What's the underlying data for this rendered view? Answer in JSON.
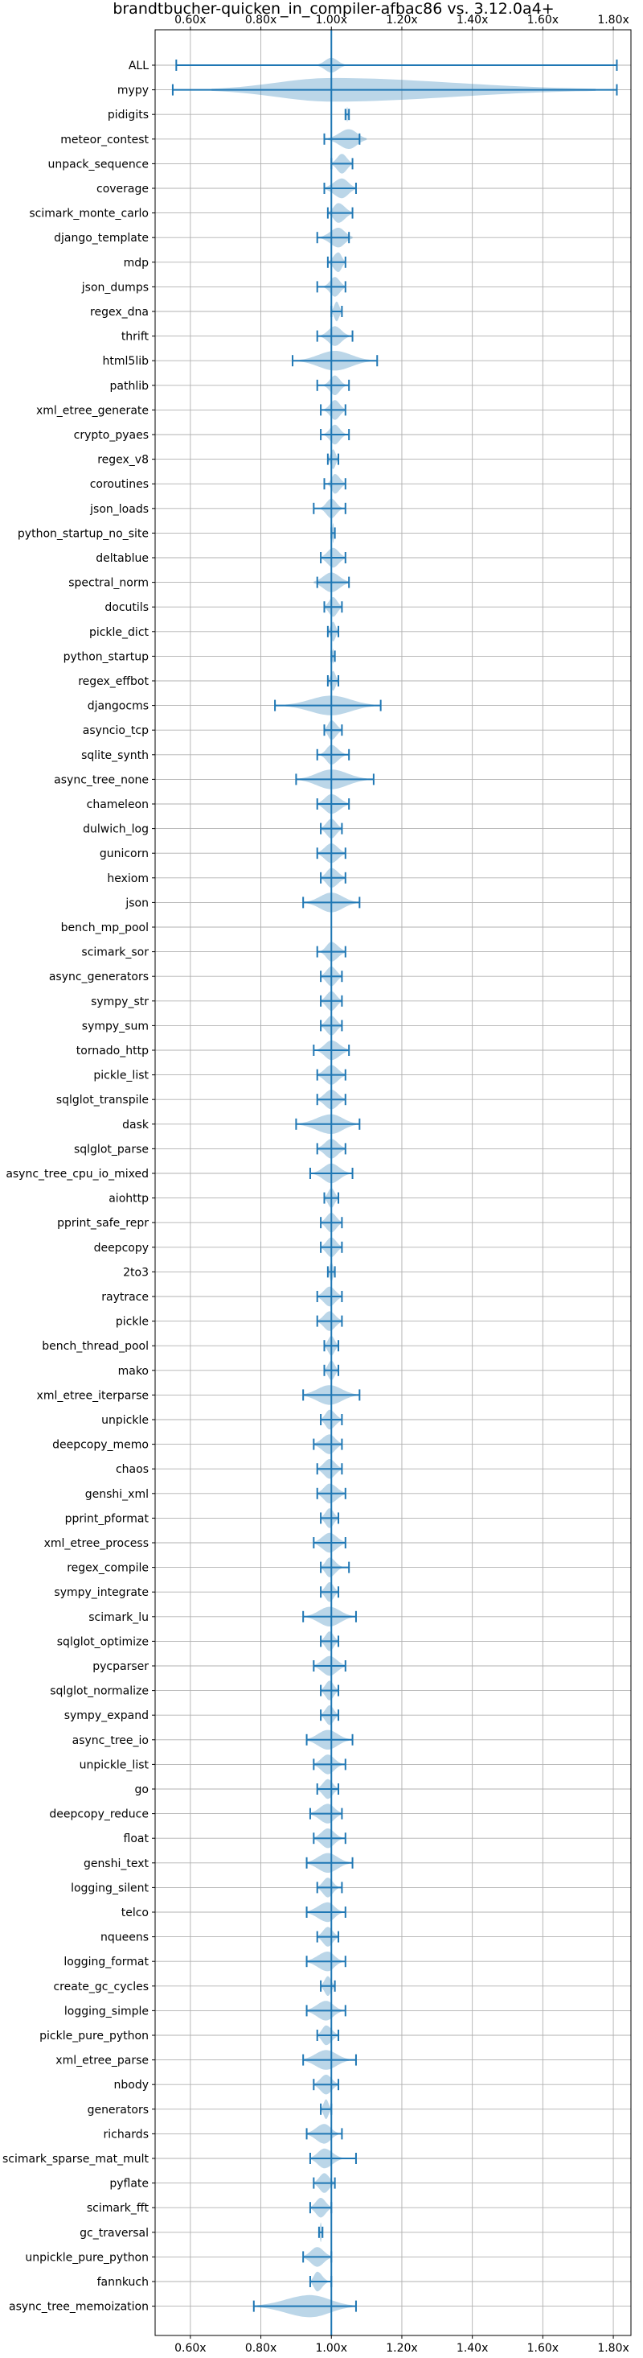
{
  "chart_data": {
    "type": "violin",
    "title": "brandtbucher-quicken_in_compiler-afbac86 vs. 3.12.0a4+",
    "xlim": [
      0.5,
      1.85
    ],
    "x_ticks": [
      0.6,
      0.8,
      1.0,
      1.2,
      1.4,
      1.6,
      1.8
    ],
    "x_tick_labels": [
      "0.60x",
      "0.80x",
      "1.00x",
      "1.20x",
      "1.40x",
      "1.60x",
      "1.80x"
    ],
    "reference_line": 1.0,
    "grid": true,
    "benchmarks": [
      {
        "name": "ALL",
        "min": 0.56,
        "max": 1.81,
        "lo": 0.96,
        "hi": 1.04,
        "center": 1.0,
        "half_width": 0.3
      },
      {
        "name": "mypy",
        "min": 0.55,
        "max": 1.81,
        "lo": 0.66,
        "hi": 1.75,
        "center": 1.0,
        "half_width": 0.48
      },
      {
        "name": "pidigits",
        "min": 1.04,
        "max": 1.05,
        "lo": 1.04,
        "hi": 1.05,
        "center": 1.045,
        "half_width": 0.3
      },
      {
        "name": "meteor_contest",
        "min": 0.98,
        "max": 1.08,
        "lo": 0.99,
        "hi": 1.1,
        "center": 1.05,
        "half_width": 0.4
      },
      {
        "name": "unpack_sequence",
        "min": 1.0,
        "max": 1.06,
        "lo": 1.0,
        "hi": 1.06,
        "center": 1.03,
        "half_width": 0.4
      },
      {
        "name": "coverage",
        "min": 0.98,
        "max": 1.07,
        "lo": 0.98,
        "hi": 1.07,
        "center": 1.03,
        "half_width": 0.4
      },
      {
        "name": "scimark_monte_carlo",
        "min": 0.99,
        "max": 1.06,
        "lo": 0.99,
        "hi": 1.06,
        "center": 1.02,
        "half_width": 0.4
      },
      {
        "name": "django_template",
        "min": 0.96,
        "max": 1.05,
        "lo": 0.97,
        "hi": 1.06,
        "center": 1.02,
        "half_width": 0.4
      },
      {
        "name": "mdp",
        "min": 0.99,
        "max": 1.04,
        "lo": 0.99,
        "hi": 1.04,
        "center": 1.02,
        "half_width": 0.4
      },
      {
        "name": "json_dumps",
        "min": 0.96,
        "max": 1.04,
        "lo": 0.98,
        "hi": 1.04,
        "center": 1.01,
        "half_width": 0.4
      },
      {
        "name": "regex_dna",
        "min": 1.0,
        "max": 1.03,
        "lo": 1.0,
        "hi": 1.03,
        "center": 1.015,
        "half_width": 0.4
      },
      {
        "name": "thrift",
        "min": 0.96,
        "max": 1.06,
        "lo": 0.97,
        "hi": 1.05,
        "center": 1.01,
        "half_width": 0.4
      },
      {
        "name": "html5lib",
        "min": 0.89,
        "max": 1.13,
        "lo": 0.91,
        "hi": 1.11,
        "center": 1.01,
        "half_width": 0.4
      },
      {
        "name": "pathlib",
        "min": 0.96,
        "max": 1.05,
        "lo": 0.98,
        "hi": 1.04,
        "center": 1.01,
        "half_width": 0.4
      },
      {
        "name": "xml_etree_generate",
        "min": 0.97,
        "max": 1.04,
        "lo": 0.98,
        "hi": 1.04,
        "center": 1.01,
        "half_width": 0.4
      },
      {
        "name": "crypto_pyaes",
        "min": 0.97,
        "max": 1.05,
        "lo": 0.98,
        "hi": 1.04,
        "center": 1.01,
        "half_width": 0.4
      },
      {
        "name": "regex_v8",
        "min": 0.99,
        "max": 1.02,
        "lo": 0.99,
        "hi": 1.02,
        "center": 1.005,
        "half_width": 0.4
      },
      {
        "name": "coroutines",
        "min": 0.98,
        "max": 1.04,
        "lo": 0.99,
        "hi": 1.04,
        "center": 1.01,
        "half_width": 0.4
      },
      {
        "name": "json_loads",
        "min": 0.95,
        "max": 1.04,
        "lo": 0.97,
        "hi": 1.03,
        "center": 1.0,
        "half_width": 0.4
      },
      {
        "name": "python_startup_no_site",
        "min": 1.0,
        "max": 1.01,
        "lo": 1.0,
        "hi": 1.01,
        "center": 1.005,
        "half_width": 0.4
      },
      {
        "name": "deltablue",
        "min": 0.97,
        "max": 1.04,
        "lo": 0.97,
        "hi": 1.04,
        "center": 1.005,
        "half_width": 0.4
      },
      {
        "name": "spectral_norm",
        "min": 0.96,
        "max": 1.05,
        "lo": 0.95,
        "hi": 1.05,
        "center": 1.0,
        "half_width": 0.4
      },
      {
        "name": "docutils",
        "min": 0.98,
        "max": 1.03,
        "lo": 0.98,
        "hi": 1.03,
        "center": 1.005,
        "half_width": 0.4
      },
      {
        "name": "pickle_dict",
        "min": 0.99,
        "max": 1.02,
        "lo": 0.99,
        "hi": 1.02,
        "center": 1.005,
        "half_width": 0.4
      },
      {
        "name": "python_startup",
        "min": 1.0,
        "max": 1.01,
        "lo": 1.0,
        "hi": 1.01,
        "center": 1.005,
        "half_width": 0.3
      },
      {
        "name": "regex_effbot",
        "min": 0.99,
        "max": 1.02,
        "lo": 0.99,
        "hi": 1.02,
        "center": 1.005,
        "half_width": 0.4
      },
      {
        "name": "djangocms",
        "min": 0.84,
        "max": 1.14,
        "lo": 0.87,
        "hi": 1.12,
        "center": 1.0,
        "half_width": 0.4
      },
      {
        "name": "asyncio_tcp",
        "min": 0.98,
        "max": 1.03,
        "lo": 0.98,
        "hi": 1.03,
        "center": 1.0,
        "half_width": 0.4
      },
      {
        "name": "sqlite_synth",
        "min": 0.96,
        "max": 1.05,
        "lo": 0.97,
        "hi": 1.04,
        "center": 1.0,
        "half_width": 0.4
      },
      {
        "name": "async_tree_none",
        "min": 0.9,
        "max": 1.12,
        "lo": 0.91,
        "hi": 1.1,
        "center": 1.0,
        "half_width": 0.4
      },
      {
        "name": "chameleon",
        "min": 0.96,
        "max": 1.05,
        "lo": 0.96,
        "hi": 1.05,
        "center": 1.0,
        "half_width": 0.4
      },
      {
        "name": "dulwich_log",
        "min": 0.97,
        "max": 1.03,
        "lo": 0.97,
        "hi": 1.03,
        "center": 1.0,
        "half_width": 0.4
      },
      {
        "name": "gunicorn",
        "min": 0.96,
        "max": 1.04,
        "lo": 0.96,
        "hi": 1.04,
        "center": 1.0,
        "half_width": 0.4
      },
      {
        "name": "hexiom",
        "min": 0.97,
        "max": 1.04,
        "lo": 0.97,
        "hi": 1.04,
        "center": 1.0,
        "half_width": 0.4
      },
      {
        "name": "json",
        "min": 0.92,
        "max": 1.08,
        "lo": 0.93,
        "hi": 1.07,
        "center": 1.0,
        "half_width": 0.4
      },
      {
        "name": "bench_mp_pool",
        "min": 1.0,
        "max": 1.0,
        "lo": 1.0,
        "hi": 1.0,
        "center": 1.0,
        "half_width": 0.0
      },
      {
        "name": "scimark_sor",
        "min": 0.96,
        "max": 1.04,
        "lo": 0.97,
        "hi": 1.04,
        "center": 1.0,
        "half_width": 0.4
      },
      {
        "name": "async_generators",
        "min": 0.97,
        "max": 1.03,
        "lo": 0.97,
        "hi": 1.03,
        "center": 1.0,
        "half_width": 0.4
      },
      {
        "name": "sympy_str",
        "min": 0.97,
        "max": 1.03,
        "lo": 0.97,
        "hi": 1.03,
        "center": 1.0,
        "half_width": 0.4
      },
      {
        "name": "sympy_sum",
        "min": 0.97,
        "max": 1.03,
        "lo": 0.97,
        "hi": 1.03,
        "center": 1.0,
        "half_width": 0.4
      },
      {
        "name": "tornado_http",
        "min": 0.95,
        "max": 1.05,
        "lo": 0.96,
        "hi": 1.05,
        "center": 1.0,
        "half_width": 0.4
      },
      {
        "name": "pickle_list",
        "min": 0.96,
        "max": 1.04,
        "lo": 0.96,
        "hi": 1.04,
        "center": 1.0,
        "half_width": 0.4
      },
      {
        "name": "sqlglot_transpile",
        "min": 0.96,
        "max": 1.04,
        "lo": 0.96,
        "hi": 1.04,
        "center": 1.0,
        "half_width": 0.4
      },
      {
        "name": "dask",
        "min": 0.9,
        "max": 1.08,
        "lo": 0.91,
        "hi": 1.07,
        "center": 1.0,
        "half_width": 0.4
      },
      {
        "name": "sqlglot_parse",
        "min": 0.96,
        "max": 1.04,
        "lo": 0.96,
        "hi": 1.04,
        "center": 1.0,
        "half_width": 0.4
      },
      {
        "name": "async_tree_cpu_io_mixed",
        "min": 0.94,
        "max": 1.06,
        "lo": 0.95,
        "hi": 1.05,
        "center": 1.0,
        "half_width": 0.4
      },
      {
        "name": "aiohttp",
        "min": 0.98,
        "max": 1.02,
        "lo": 0.98,
        "hi": 1.02,
        "center": 1.0,
        "half_width": 0.4
      },
      {
        "name": "pprint_safe_repr",
        "min": 0.97,
        "max": 1.03,
        "lo": 0.97,
        "hi": 1.03,
        "center": 1.0,
        "half_width": 0.4
      },
      {
        "name": "deepcopy",
        "min": 0.97,
        "max": 1.03,
        "lo": 0.97,
        "hi": 1.03,
        "center": 1.0,
        "half_width": 0.4
      },
      {
        "name": "2to3",
        "min": 0.99,
        "max": 1.01,
        "lo": 0.99,
        "hi": 1.01,
        "center": 1.0,
        "half_width": 0.4
      },
      {
        "name": "raytrace",
        "min": 0.96,
        "max": 1.03,
        "lo": 0.96,
        "hi": 1.03,
        "center": 0.995,
        "half_width": 0.4
      },
      {
        "name": "pickle",
        "min": 0.96,
        "max": 1.03,
        "lo": 0.96,
        "hi": 1.03,
        "center": 0.995,
        "half_width": 0.4
      },
      {
        "name": "bench_thread_pool",
        "min": 0.98,
        "max": 1.02,
        "lo": 0.98,
        "hi": 1.02,
        "center": 1.0,
        "half_width": 0.4
      },
      {
        "name": "mako",
        "min": 0.98,
        "max": 1.02,
        "lo": 0.98,
        "hi": 1.02,
        "center": 1.0,
        "half_width": 0.4
      },
      {
        "name": "xml_etree_iterparse",
        "min": 0.92,
        "max": 1.08,
        "lo": 0.92,
        "hi": 1.07,
        "center": 0.995,
        "half_width": 0.4
      },
      {
        "name": "unpickle",
        "min": 0.97,
        "max": 1.03,
        "lo": 0.97,
        "hi": 1.03,
        "center": 0.995,
        "half_width": 0.4
      },
      {
        "name": "deepcopy_memo",
        "min": 0.95,
        "max": 1.03,
        "lo": 0.95,
        "hi": 1.03,
        "center": 0.995,
        "half_width": 0.4
      },
      {
        "name": "chaos",
        "min": 0.96,
        "max": 1.03,
        "lo": 0.96,
        "hi": 1.03,
        "center": 0.995,
        "half_width": 0.4
      },
      {
        "name": "genshi_xml",
        "min": 0.96,
        "max": 1.04,
        "lo": 0.96,
        "hi": 1.04,
        "center": 0.995,
        "half_width": 0.4
      },
      {
        "name": "pprint_pformat",
        "min": 0.97,
        "max": 1.02,
        "lo": 0.97,
        "hi": 1.02,
        "center": 0.995,
        "half_width": 0.4
      },
      {
        "name": "xml_etree_process",
        "min": 0.95,
        "max": 1.04,
        "lo": 0.95,
        "hi": 1.04,
        "center": 0.995,
        "half_width": 0.4
      },
      {
        "name": "regex_compile",
        "min": 0.97,
        "max": 1.05,
        "lo": 0.97,
        "hi": 1.03,
        "center": 0.995,
        "half_width": 0.4
      },
      {
        "name": "sympy_integrate",
        "min": 0.97,
        "max": 1.02,
        "lo": 0.97,
        "hi": 1.02,
        "center": 0.995,
        "half_width": 0.4
      },
      {
        "name": "scimark_lu",
        "min": 0.92,
        "max": 1.07,
        "lo": 0.93,
        "hi": 1.06,
        "center": 0.995,
        "half_width": 0.4
      },
      {
        "name": "sqlglot_optimize",
        "min": 0.97,
        "max": 1.02,
        "lo": 0.97,
        "hi": 1.02,
        "center": 0.995,
        "half_width": 0.4
      },
      {
        "name": "pycparser",
        "min": 0.95,
        "max": 1.04,
        "lo": 0.95,
        "hi": 1.04,
        "center": 0.995,
        "half_width": 0.4
      },
      {
        "name": "sqlglot_normalize",
        "min": 0.97,
        "max": 1.02,
        "lo": 0.97,
        "hi": 1.02,
        "center": 0.995,
        "half_width": 0.4
      },
      {
        "name": "sympy_expand",
        "min": 0.97,
        "max": 1.02,
        "lo": 0.97,
        "hi": 1.02,
        "center": 0.995,
        "half_width": 0.4
      },
      {
        "name": "async_tree_io",
        "min": 0.93,
        "max": 1.06,
        "lo": 0.93,
        "hi": 1.05,
        "center": 0.99,
        "half_width": 0.4
      },
      {
        "name": "unpickle_list",
        "min": 0.95,
        "max": 1.04,
        "lo": 0.95,
        "hi": 1.03,
        "center": 0.99,
        "half_width": 0.4
      },
      {
        "name": "go",
        "min": 0.96,
        "max": 1.02,
        "lo": 0.96,
        "hi": 1.02,
        "center": 0.99,
        "half_width": 0.4
      },
      {
        "name": "deepcopy_reduce",
        "min": 0.94,
        "max": 1.03,
        "lo": 0.94,
        "hi": 1.03,
        "center": 0.99,
        "half_width": 0.4
      },
      {
        "name": "float",
        "min": 0.95,
        "max": 1.04,
        "lo": 0.95,
        "hi": 1.03,
        "center": 0.99,
        "half_width": 0.4
      },
      {
        "name": "genshi_text",
        "min": 0.93,
        "max": 1.06,
        "lo": 0.93,
        "hi": 1.05,
        "center": 0.99,
        "half_width": 0.4
      },
      {
        "name": "logging_silent",
        "min": 0.96,
        "max": 1.03,
        "lo": 0.96,
        "hi": 1.02,
        "center": 0.99,
        "half_width": 0.4
      },
      {
        "name": "telco",
        "min": 0.93,
        "max": 1.04,
        "lo": 0.93,
        "hi": 1.03,
        "center": 0.99,
        "half_width": 0.4
      },
      {
        "name": "nqueens",
        "min": 0.96,
        "max": 1.02,
        "lo": 0.96,
        "hi": 1.02,
        "center": 0.99,
        "half_width": 0.4
      },
      {
        "name": "logging_format",
        "min": 0.93,
        "max": 1.04,
        "lo": 0.93,
        "hi": 1.03,
        "center": 0.99,
        "half_width": 0.4
      },
      {
        "name": "create_gc_cycles",
        "min": 0.97,
        "max": 1.01,
        "lo": 0.97,
        "hi": 1.01,
        "center": 0.99,
        "half_width": 0.4
      },
      {
        "name": "logging_simple",
        "min": 0.93,
        "max": 1.04,
        "lo": 0.93,
        "hi": 1.03,
        "center": 0.985,
        "half_width": 0.4
      },
      {
        "name": "pickle_pure_python",
        "min": 0.96,
        "max": 1.02,
        "lo": 0.96,
        "hi": 1.02,
        "center": 0.985,
        "half_width": 0.4
      },
      {
        "name": "xml_etree_parse",
        "min": 0.92,
        "max": 1.07,
        "lo": 0.92,
        "hi": 1.05,
        "center": 0.985,
        "half_width": 0.4
      },
      {
        "name": "nbody",
        "min": 0.95,
        "max": 1.02,
        "lo": 0.95,
        "hi": 1.02,
        "center": 0.985,
        "half_width": 0.4
      },
      {
        "name": "generators",
        "min": 0.97,
        "max": 1.0,
        "lo": 0.97,
        "hi": 1.0,
        "center": 0.985,
        "half_width": 0.4
      },
      {
        "name": "richards",
        "min": 0.93,
        "max": 1.03,
        "lo": 0.93,
        "hi": 1.02,
        "center": 0.98,
        "half_width": 0.4
      },
      {
        "name": "scimark_sparse_mat_mult",
        "min": 0.94,
        "max": 1.07,
        "lo": 0.94,
        "hi": 1.03,
        "center": 0.98,
        "half_width": 0.4
      },
      {
        "name": "pyflate",
        "min": 0.95,
        "max": 1.01,
        "lo": 0.95,
        "hi": 1.01,
        "center": 0.98,
        "half_width": 0.4
      },
      {
        "name": "scimark_fft",
        "min": 0.94,
        "max": 1.0,
        "lo": 0.94,
        "hi": 1.0,
        "center": 0.97,
        "half_width": 0.4
      },
      {
        "name": "gc_traversal",
        "min": 0.965,
        "max": 0.975,
        "lo": 0.965,
        "hi": 0.975,
        "center": 0.97,
        "half_width": 0.4
      },
      {
        "name": "unpickle_pure_python",
        "min": 0.92,
        "max": 1.0,
        "lo": 0.92,
        "hi": 1.0,
        "center": 0.96,
        "half_width": 0.4
      },
      {
        "name": "fannkuch",
        "min": 0.94,
        "max": 1.0,
        "lo": 0.94,
        "hi": 0.99,
        "center": 0.96,
        "half_width": 0.4
      },
      {
        "name": "async_tree_memoization",
        "min": 0.78,
        "max": 1.07,
        "lo": 0.79,
        "hi": 1.06,
        "center": 0.94,
        "half_width": 0.45
      }
    ]
  }
}
